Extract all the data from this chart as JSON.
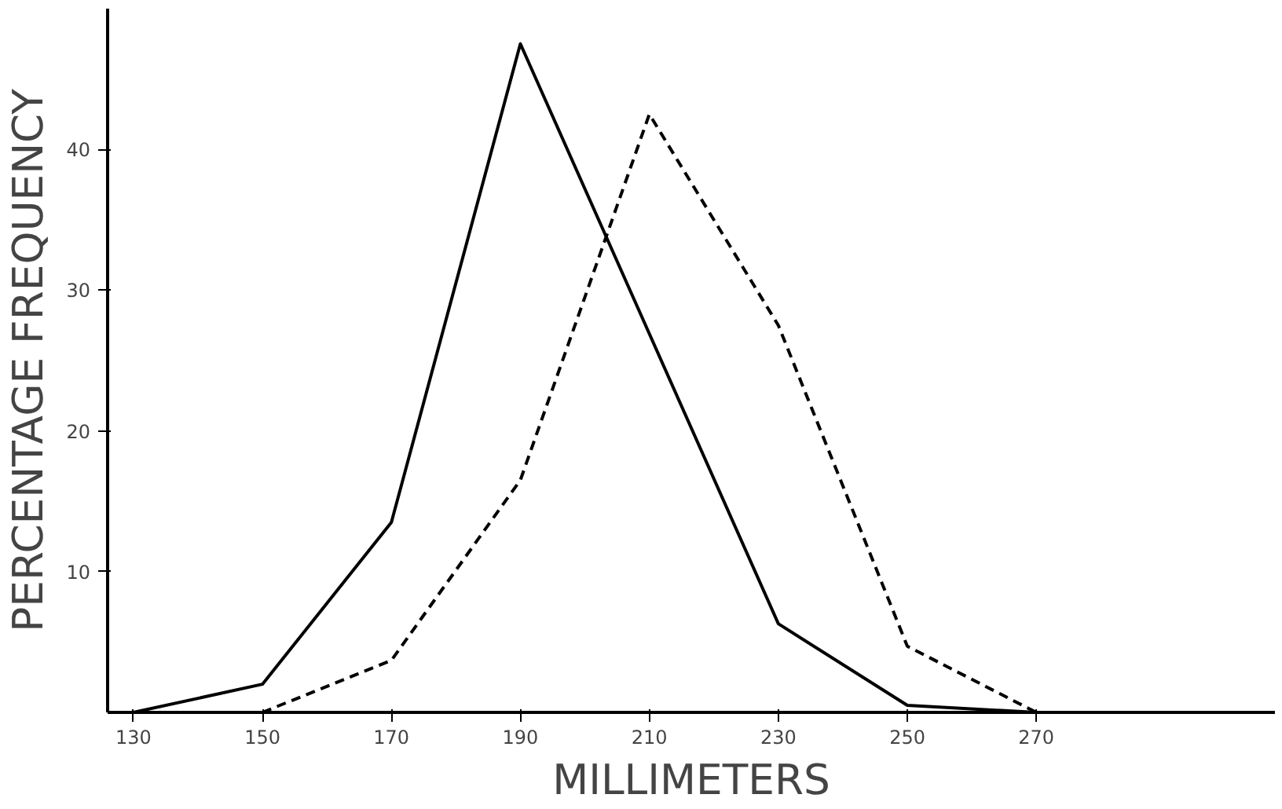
{
  "chart_data": {
    "type": "line",
    "xlabel": "MILLIMETERS",
    "ylabel": "PERCENTAGE FREQUENCY",
    "xlim": [
      126,
      307
    ],
    "ylim": [
      0,
      50
    ],
    "xticks": [
      130,
      150,
      170,
      190,
      210,
      230,
      250,
      270
    ],
    "yticks": [
      10,
      20,
      30,
      40
    ],
    "grid": false,
    "marker": "none",
    "series": [
      {
        "color": "#000000",
        "line_style": "solid",
        "x": [
          130,
          150,
          170,
          190,
          230,
          250,
          270
        ],
        "values": [
          0,
          2,
          13.5,
          47.5,
          6.3,
          0.5,
          0
        ]
      },
      {
        "color": "#000000",
        "line_style": "dashed",
        "x": [
          150,
          170,
          190,
          210,
          230,
          250,
          270
        ],
        "values": [
          0,
          3.7,
          16.5,
          42.5,
          27.5,
          4.7,
          0
        ]
      }
    ]
  }
}
